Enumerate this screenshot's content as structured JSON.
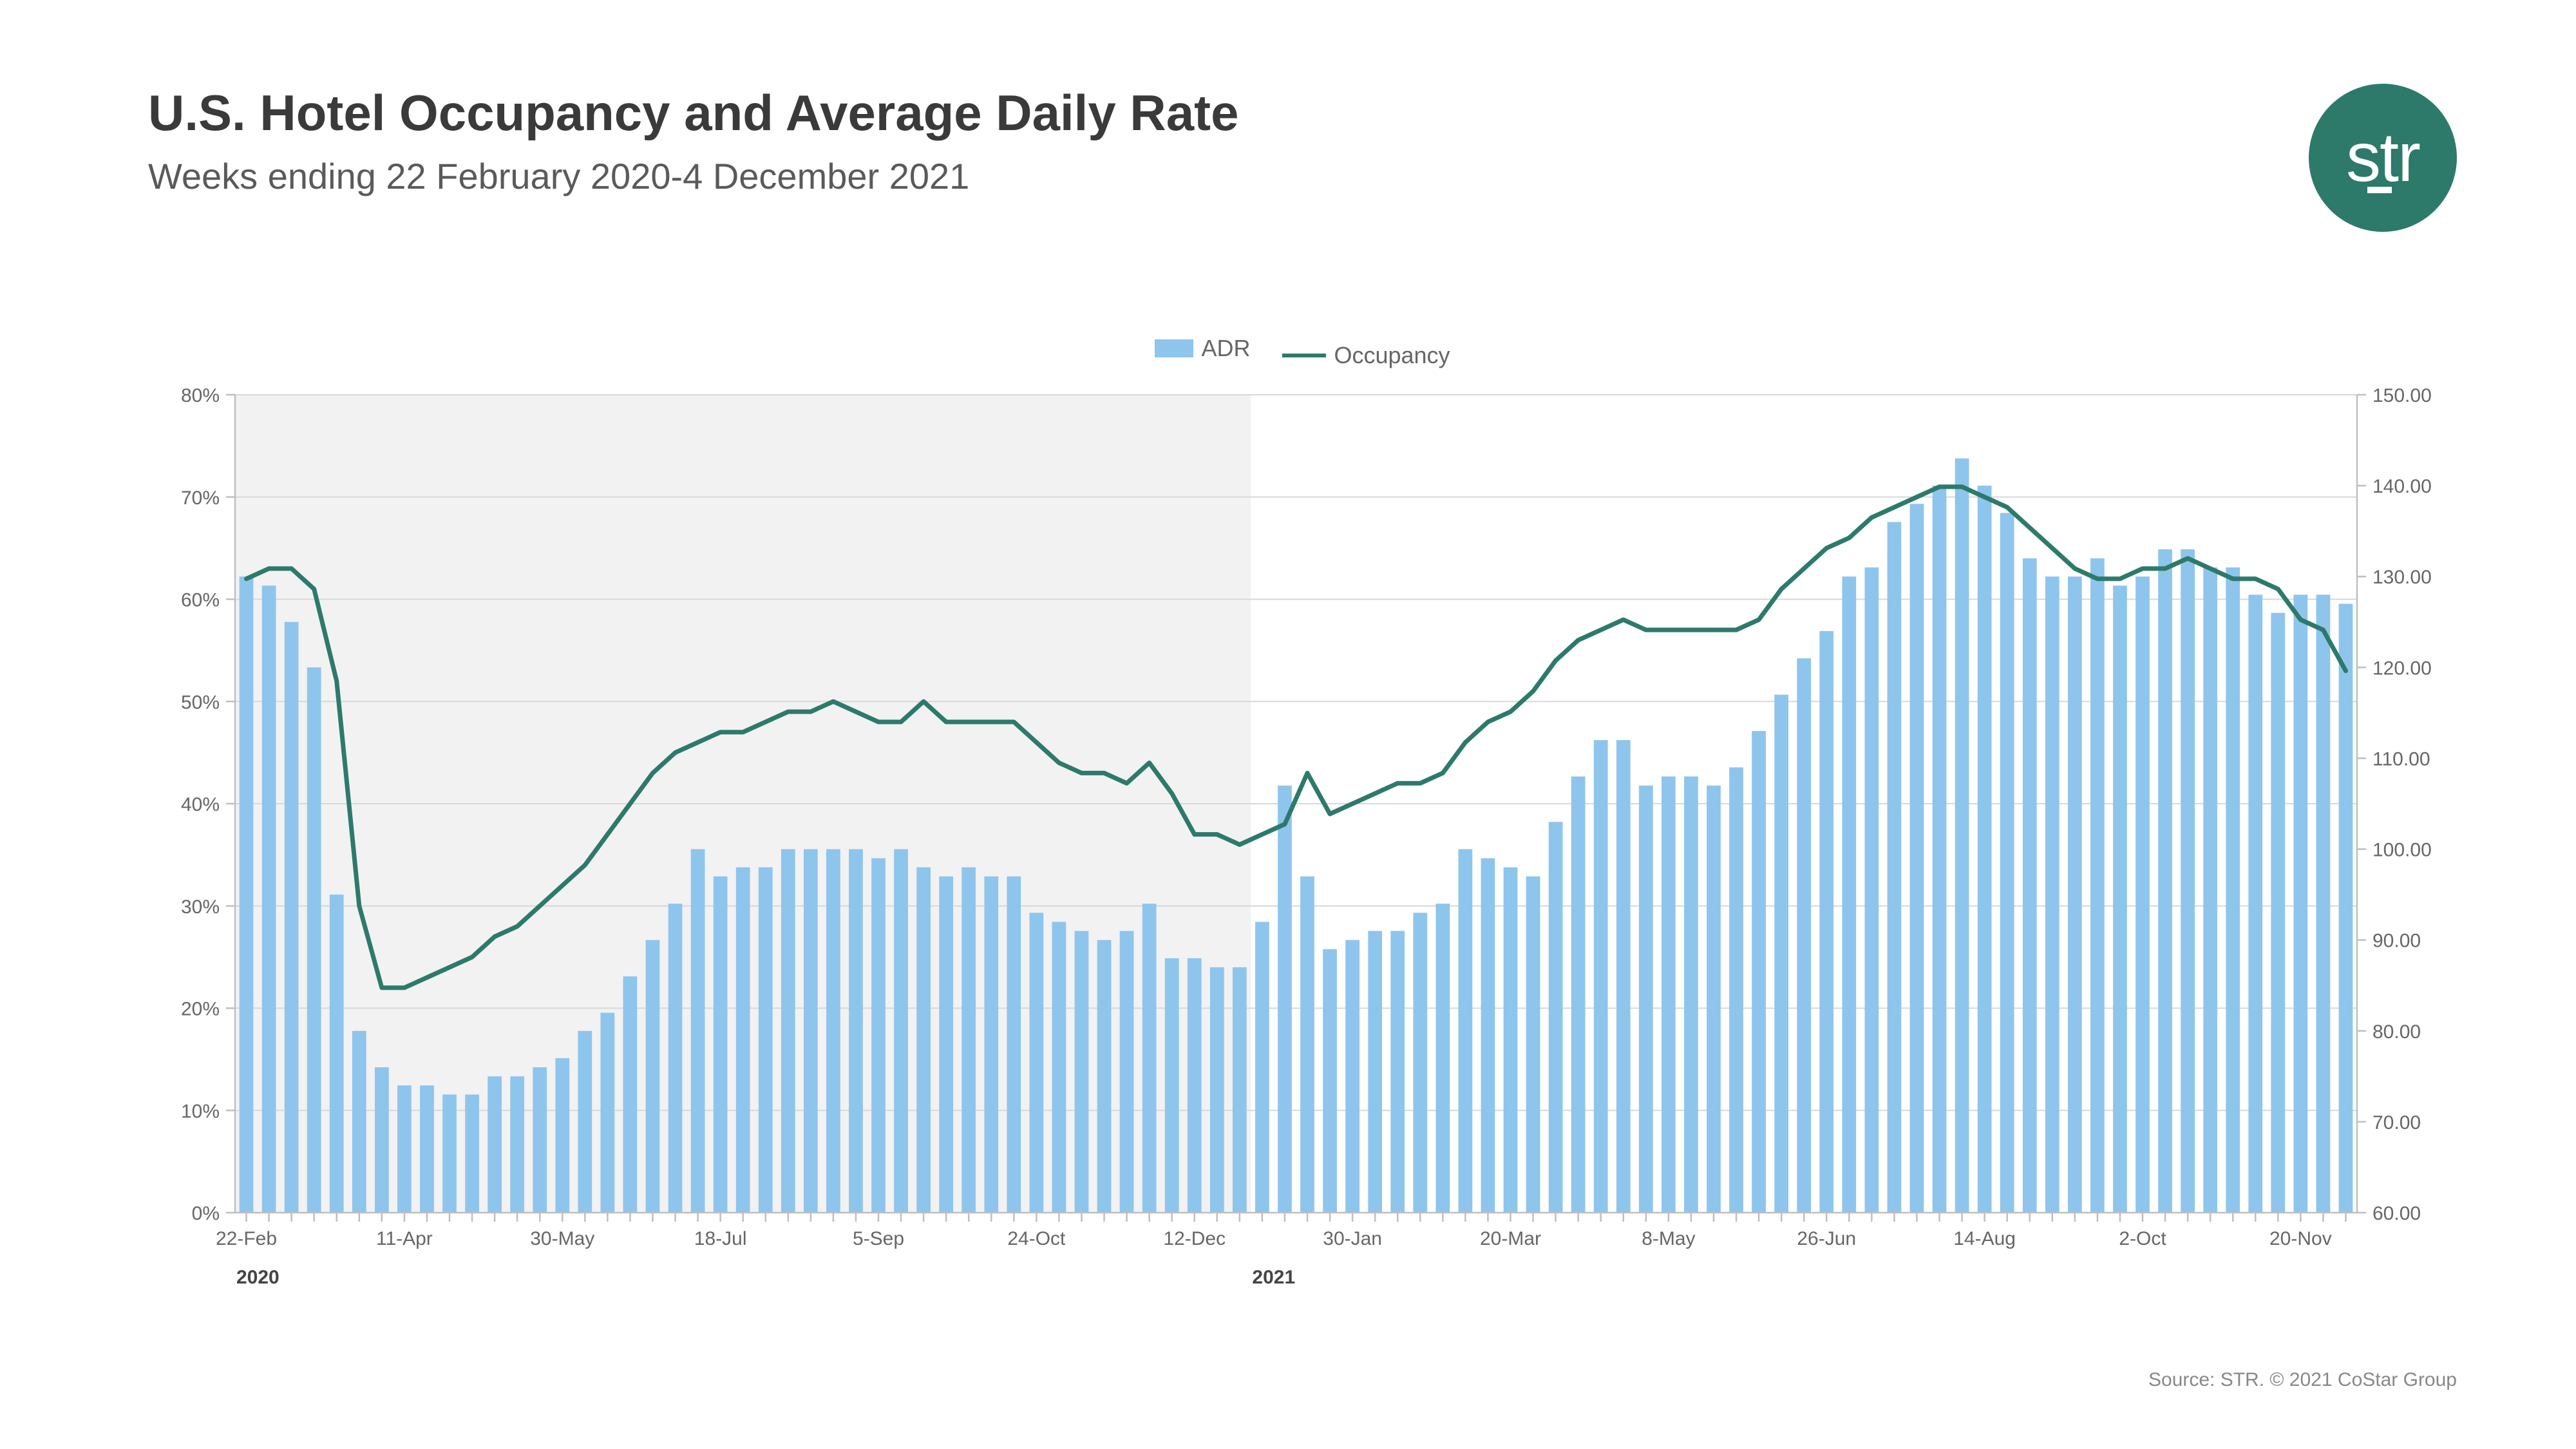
{
  "title": "U.S. Hotel Occupancy and Average Daily Rate",
  "subtitle": "Weeks ending 22 February 2020-4 December 2021",
  "logo_text": "str",
  "source": "Source: STR. © 2021 CoStar Group",
  "legend": {
    "adr_label": "ADR",
    "occupancy_label": "Occupancy"
  },
  "chart": {
    "type": "bar+line",
    "left_axis": {
      "min": 0,
      "max": 80,
      "step": 10,
      "suffix": "%",
      "ticks": [
        0,
        10,
        20,
        30,
        40,
        50,
        60,
        70,
        80
      ]
    },
    "right_axis": {
      "min": 60,
      "max": 150,
      "step": 10,
      "decimals": 2,
      "ticks": [
        60,
        70,
        80,
        90,
        100,
        110,
        120,
        130,
        140,
        150
      ]
    },
    "bar_color": "#8ec5ed",
    "line_color": "#2d7a6b",
    "line_width": 7,
    "grid_color": "#d8d8d8",
    "axis_color": "#bfbfbf",
    "shaded_region_color": "#f2f2f2",
    "shaded_region_end_index": 45,
    "background_color": "#ffffff",
    "axis_label_fontsize": 30,
    "axis_label_color": "#666666",
    "year_labels": [
      {
        "text": "2020",
        "index": 0
      },
      {
        "text": "2021",
        "index": 45
      }
    ],
    "x_tick_labels": [
      "22-Feb",
      "",
      "",
      "",
      "",
      "",
      "",
      "11-Apr",
      "",
      "",
      "",
      "",
      "",
      "",
      "30-May",
      "",
      "",
      "",
      "",
      "",
      "",
      "18-Jul",
      "",
      "",
      "",
      "",
      "",
      "",
      "5-Sep",
      "",
      "",
      "",
      "",
      "",
      "",
      "24-Oct",
      "",
      "",
      "",
      "",
      "",
      "",
      "12-Dec",
      "",
      "",
      "",
      "",
      "",
      "",
      "30-Jan",
      "",
      "",
      "",
      "",
      "",
      "",
      "20-Mar",
      "",
      "",
      "",
      "",
      "",
      "",
      "8-May",
      "",
      "",
      "",
      "",
      "",
      "",
      "26-Jun",
      "",
      "",
      "",
      "",
      "",
      "",
      "14-Aug",
      "",
      "",
      "",
      "",
      "",
      "",
      "2-Oct",
      "",
      "",
      "",
      "",
      "",
      "",
      "20-Nov",
      "",
      ""
    ],
    "adr_values": [
      130,
      129,
      125,
      120,
      95,
      80,
      76,
      74,
      74,
      73,
      73,
      75,
      75,
      76,
      77,
      80,
      82,
      86,
      90,
      94,
      100,
      97,
      98,
      98,
      100,
      100,
      100,
      100,
      99,
      100,
      98,
      97,
      98,
      97,
      97,
      93,
      92,
      91,
      90,
      91,
      94,
      88,
      88,
      87,
      87,
      92,
      107,
      97,
      89,
      90,
      91,
      91,
      93,
      94,
      100,
      99,
      98,
      97,
      103,
      108,
      112,
      112,
      107,
      108,
      108,
      107,
      109,
      113,
      117,
      121,
      124,
      130,
      131,
      136,
      138,
      140,
      143,
      140,
      137,
      132,
      130,
      130,
      132,
      129,
      130,
      133,
      133,
      131,
      131,
      128,
      126,
      128,
      128,
      127
    ],
    "occupancy_values": [
      62,
      63,
      63,
      61,
      52,
      30,
      22,
      22,
      23,
      24,
      25,
      27,
      28,
      30,
      32,
      34,
      37,
      40,
      43,
      45,
      46,
      47,
      47,
      48,
      49,
      49,
      50,
      49,
      48,
      48,
      50,
      48,
      48,
      48,
      48,
      46,
      44,
      43,
      43,
      42,
      44,
      41,
      37,
      37,
      36,
      37,
      38,
      43,
      39,
      40,
      41,
      42,
      42,
      43,
      46,
      48,
      49,
      51,
      54,
      56,
      57,
      58,
      57,
      57,
      57,
      57,
      57,
      58,
      61,
      63,
      65,
      66,
      68,
      69,
      70,
      71,
      71,
      70,
      69,
      67,
      65,
      63,
      62,
      62,
      63,
      63,
      64,
      63,
      62,
      62,
      61,
      58,
      57,
      53
    ]
  }
}
